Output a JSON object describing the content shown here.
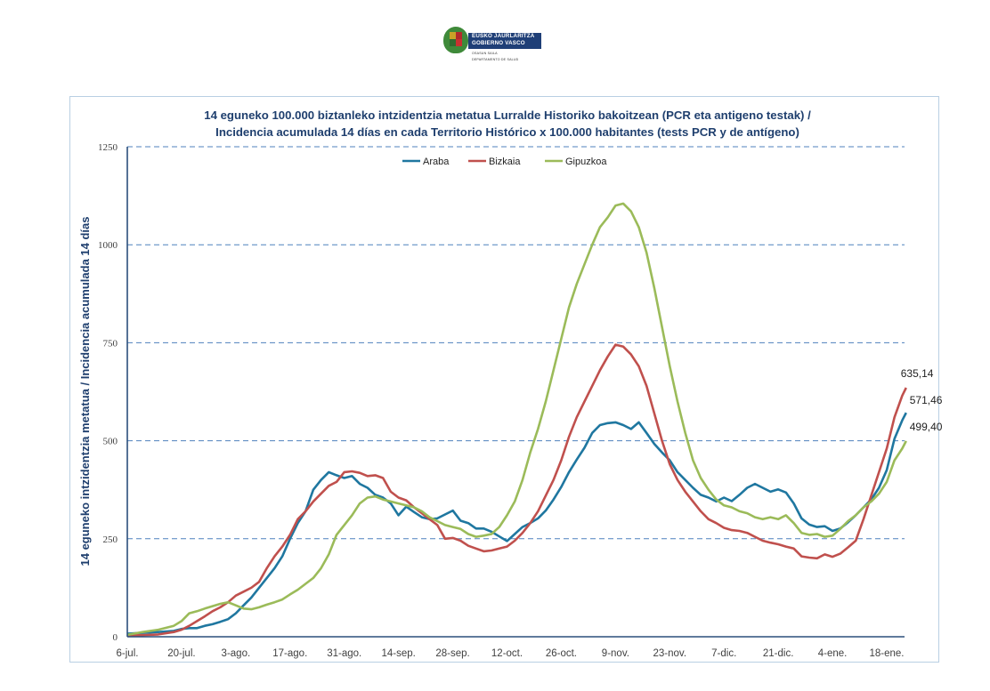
{
  "logo": {
    "line1": "EUSKO JAURLARITZA",
    "line2": "GOBIERNO VASCO",
    "dept1": "OSASUN SAILA",
    "dept2": "DEPARTAMENTO DE SALUD"
  },
  "chart_data": {
    "type": "line",
    "title_line1": "14 eguneko 100.000 biztanleko intzidentzia metatua Lurralde Historiko bakoitzean (PCR eta antigeno  testak) /",
    "title_line2": "Incidencia  acumulada  14 días en cada Territorio Histórico x 100.000 habitantes (tests PCR y de antígeno)",
    "ylabel": "14 eguneko intzidentzia metatua / Incidencia acumulada 14 días",
    "xlabel": "",
    "ylim": [
      0,
      1250
    ],
    "yticks": [
      0,
      250,
      500,
      750,
      1000,
      1250
    ],
    "grid": "horizontal-dashed",
    "legend_position": "top-center",
    "x_unit": "days since 6-jul.",
    "xlim": [
      0,
      201
    ],
    "xtick_labels": [
      {
        "day": 0,
        "label": "6-jul."
      },
      {
        "day": 14,
        "label": "20-jul."
      },
      {
        "day": 28,
        "label": "3-ago."
      },
      {
        "day": 42,
        "label": "17-ago."
      },
      {
        "day": 56,
        "label": "31-ago."
      },
      {
        "day": 70,
        "label": "14-sep."
      },
      {
        "day": 84,
        "label": "28-sep."
      },
      {
        "day": 98,
        "label": "12-oct."
      },
      {
        "day": 112,
        "label": "26-oct."
      },
      {
        "day": 126,
        "label": "9-nov."
      },
      {
        "day": 140,
        "label": "23-nov."
      },
      {
        "day": 154,
        "label": "7-dic."
      },
      {
        "day": 168,
        "label": "21-dic."
      },
      {
        "day": 182,
        "label": "4-ene."
      },
      {
        "day": 196,
        "label": "18-ene."
      }
    ],
    "series": [
      {
        "name": "Araba",
        "color": "#1f77a0",
        "end_label": "571,46",
        "points": [
          [
            0,
            8
          ],
          [
            4,
            10
          ],
          [
            8,
            12
          ],
          [
            12,
            15
          ],
          [
            14,
            20
          ],
          [
            16,
            22
          ],
          [
            18,
            22
          ],
          [
            20,
            28
          ],
          [
            22,
            32
          ],
          [
            24,
            38
          ],
          [
            26,
            45
          ],
          [
            28,
            60
          ],
          [
            30,
            80
          ],
          [
            32,
            100
          ],
          [
            34,
            125
          ],
          [
            36,
            150
          ],
          [
            38,
            175
          ],
          [
            40,
            205
          ],
          [
            42,
            250
          ],
          [
            44,
            290
          ],
          [
            46,
            320
          ],
          [
            48,
            375
          ],
          [
            50,
            400
          ],
          [
            52,
            420
          ],
          [
            54,
            412
          ],
          [
            56,
            405
          ],
          [
            58,
            410
          ],
          [
            60,
            390
          ],
          [
            62,
            380
          ],
          [
            64,
            362
          ],
          [
            66,
            355
          ],
          [
            68,
            340
          ],
          [
            70,
            310
          ],
          [
            72,
            332
          ],
          [
            74,
            318
          ],
          [
            76,
            305
          ],
          [
            78,
            300
          ],
          [
            80,
            302
          ],
          [
            82,
            312
          ],
          [
            84,
            322
          ],
          [
            86,
            296
          ],
          [
            88,
            290
          ],
          [
            90,
            276
          ],
          [
            92,
            276
          ],
          [
            94,
            268
          ],
          [
            96,
            256
          ],
          [
            98,
            244
          ],
          [
            100,
            262
          ],
          [
            102,
            280
          ],
          [
            104,
            290
          ],
          [
            106,
            302
          ],
          [
            108,
            322
          ],
          [
            110,
            350
          ],
          [
            112,
            382
          ],
          [
            114,
            420
          ],
          [
            116,
            452
          ],
          [
            118,
            482
          ],
          [
            120,
            520
          ],
          [
            122,
            540
          ],
          [
            124,
            545
          ],
          [
            126,
            547
          ],
          [
            128,
            540
          ],
          [
            130,
            530
          ],
          [
            132,
            547
          ],
          [
            134,
            520
          ],
          [
            136,
            492
          ],
          [
            138,
            470
          ],
          [
            140,
            450
          ],
          [
            142,
            420
          ],
          [
            144,
            400
          ],
          [
            146,
            380
          ],
          [
            148,
            362
          ],
          [
            150,
            355
          ],
          [
            152,
            345
          ],
          [
            154,
            355
          ],
          [
            156,
            346
          ],
          [
            158,
            362
          ],
          [
            160,
            380
          ],
          [
            162,
            390
          ],
          [
            164,
            380
          ],
          [
            166,
            370
          ],
          [
            168,
            376
          ],
          [
            170,
            368
          ],
          [
            172,
            340
          ],
          [
            174,
            302
          ],
          [
            176,
            286
          ],
          [
            178,
            280
          ],
          [
            180,
            282
          ],
          [
            182,
            270
          ],
          [
            184,
            276
          ],
          [
            186,
            292
          ],
          [
            188,
            310
          ],
          [
            190,
            330
          ],
          [
            192,
            350
          ],
          [
            194,
            380
          ],
          [
            196,
            425
          ],
          [
            198,
            505
          ],
          [
            200,
            552
          ],
          [
            201,
            571.46
          ]
        ]
      },
      {
        "name": "Bizkaia",
        "color": "#c0504d",
        "end_label": "635,14",
        "points": [
          [
            0,
            3
          ],
          [
            4,
            4
          ],
          [
            8,
            6
          ],
          [
            12,
            12
          ],
          [
            14,
            18
          ],
          [
            16,
            28
          ],
          [
            18,
            40
          ],
          [
            20,
            52
          ],
          [
            22,
            65
          ],
          [
            24,
            75
          ],
          [
            26,
            88
          ],
          [
            28,
            105
          ],
          [
            30,
            115
          ],
          [
            32,
            125
          ],
          [
            34,
            140
          ],
          [
            36,
            175
          ],
          [
            38,
            205
          ],
          [
            40,
            230
          ],
          [
            42,
            260
          ],
          [
            44,
            300
          ],
          [
            46,
            320
          ],
          [
            48,
            345
          ],
          [
            50,
            365
          ],
          [
            52,
            385
          ],
          [
            54,
            395
          ],
          [
            56,
            420
          ],
          [
            58,
            422
          ],
          [
            60,
            418
          ],
          [
            62,
            410
          ],
          [
            64,
            412
          ],
          [
            66,
            405
          ],
          [
            68,
            370
          ],
          [
            70,
            355
          ],
          [
            72,
            348
          ],
          [
            74,
            330
          ],
          [
            76,
            315
          ],
          [
            78,
            300
          ],
          [
            80,
            285
          ],
          [
            82,
            250
          ],
          [
            84,
            252
          ],
          [
            86,
            245
          ],
          [
            88,
            232
          ],
          [
            90,
            225
          ],
          [
            92,
            218
          ],
          [
            94,
            220
          ],
          [
            96,
            225
          ],
          [
            98,
            230
          ],
          [
            100,
            245
          ],
          [
            102,
            265
          ],
          [
            104,
            290
          ],
          [
            106,
            320
          ],
          [
            108,
            360
          ],
          [
            110,
            400
          ],
          [
            112,
            450
          ],
          [
            114,
            510
          ],
          [
            116,
            560
          ],
          [
            118,
            600
          ],
          [
            120,
            640
          ],
          [
            122,
            680
          ],
          [
            124,
            715
          ],
          [
            126,
            745
          ],
          [
            128,
            740
          ],
          [
            130,
            720
          ],
          [
            132,
            690
          ],
          [
            134,
            640
          ],
          [
            136,
            570
          ],
          [
            138,
            500
          ],
          [
            140,
            440
          ],
          [
            142,
            400
          ],
          [
            144,
            370
          ],
          [
            146,
            345
          ],
          [
            148,
            320
          ],
          [
            150,
            300
          ],
          [
            152,
            290
          ],
          [
            154,
            278
          ],
          [
            156,
            272
          ],
          [
            158,
            270
          ],
          [
            160,
            265
          ],
          [
            162,
            255
          ],
          [
            164,
            245
          ],
          [
            166,
            240
          ],
          [
            168,
            236
          ],
          [
            170,
            230
          ],
          [
            172,
            225
          ],
          [
            174,
            205
          ],
          [
            176,
            202
          ],
          [
            178,
            200
          ],
          [
            180,
            210
          ],
          [
            182,
            204
          ],
          [
            184,
            212
          ],
          [
            186,
            228
          ],
          [
            188,
            245
          ],
          [
            190,
            300
          ],
          [
            192,
            360
          ],
          [
            194,
            420
          ],
          [
            196,
            480
          ],
          [
            198,
            560
          ],
          [
            200,
            615
          ],
          [
            201,
            635.14
          ]
        ]
      },
      {
        "name": "Gipuzkoa",
        "color": "#9bbb59",
        "end_label": "499,40",
        "points": [
          [
            0,
            5
          ],
          [
            4,
            12
          ],
          [
            8,
            18
          ],
          [
            12,
            28
          ],
          [
            14,
            40
          ],
          [
            16,
            60
          ],
          [
            18,
            65
          ],
          [
            20,
            72
          ],
          [
            22,
            78
          ],
          [
            24,
            84
          ],
          [
            26,
            88
          ],
          [
            28,
            80
          ],
          [
            30,
            72
          ],
          [
            32,
            70
          ],
          [
            34,
            75
          ],
          [
            36,
            82
          ],
          [
            38,
            88
          ],
          [
            40,
            95
          ],
          [
            42,
            108
          ],
          [
            44,
            120
          ],
          [
            46,
            135
          ],
          [
            48,
            150
          ],
          [
            50,
            175
          ],
          [
            52,
            210
          ],
          [
            54,
            260
          ],
          [
            56,
            285
          ],
          [
            58,
            310
          ],
          [
            60,
            340
          ],
          [
            62,
            355
          ],
          [
            64,
            358
          ],
          [
            66,
            350
          ],
          [
            68,
            345
          ],
          [
            70,
            340
          ],
          [
            72,
            335
          ],
          [
            74,
            330
          ],
          [
            76,
            320
          ],
          [
            78,
            305
          ],
          [
            80,
            295
          ],
          [
            82,
            285
          ],
          [
            84,
            280
          ],
          [
            86,
            275
          ],
          [
            88,
            262
          ],
          [
            90,
            255
          ],
          [
            92,
            258
          ],
          [
            94,
            262
          ],
          [
            96,
            280
          ],
          [
            98,
            310
          ],
          [
            100,
            345
          ],
          [
            102,
            400
          ],
          [
            104,
            470
          ],
          [
            106,
            530
          ],
          [
            108,
            600
          ],
          [
            110,
            680
          ],
          [
            112,
            760
          ],
          [
            114,
            840
          ],
          [
            116,
            900
          ],
          [
            118,
            950
          ],
          [
            120,
            1000
          ],
          [
            122,
            1045
          ],
          [
            124,
            1070
          ],
          [
            126,
            1100
          ],
          [
            128,
            1105
          ],
          [
            130,
            1085
          ],
          [
            132,
            1045
          ],
          [
            134,
            980
          ],
          [
            136,
            890
          ],
          [
            138,
            790
          ],
          [
            140,
            690
          ],
          [
            142,
            600
          ],
          [
            144,
            520
          ],
          [
            146,
            450
          ],
          [
            148,
            405
          ],
          [
            150,
            375
          ],
          [
            152,
            350
          ],
          [
            154,
            335
          ],
          [
            156,
            330
          ],
          [
            158,
            320
          ],
          [
            160,
            315
          ],
          [
            162,
            305
          ],
          [
            164,
            300
          ],
          [
            166,
            305
          ],
          [
            168,
            300
          ],
          [
            170,
            310
          ],
          [
            172,
            290
          ],
          [
            174,
            265
          ],
          [
            176,
            260
          ],
          [
            178,
            262
          ],
          [
            180,
            255
          ],
          [
            182,
            258
          ],
          [
            184,
            275
          ],
          [
            186,
            295
          ],
          [
            188,
            310
          ],
          [
            190,
            330
          ],
          [
            192,
            345
          ],
          [
            194,
            365
          ],
          [
            196,
            395
          ],
          [
            198,
            450
          ],
          [
            200,
            480
          ],
          [
            201,
            499.4
          ]
        ]
      }
    ]
  }
}
